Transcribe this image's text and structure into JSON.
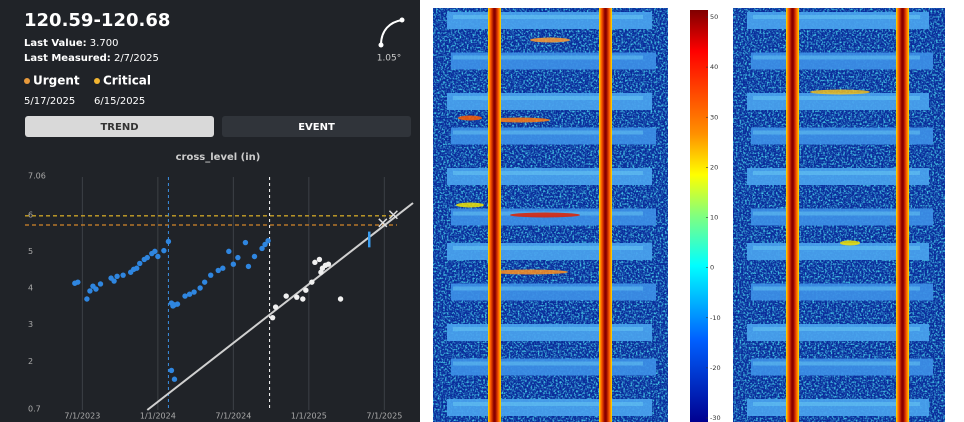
{
  "header": {
    "title": "120.59-120.68",
    "last_value_label": "Last Value:",
    "last_value": "3.700",
    "last_measured_label": "Last Measured:",
    "last_measured": "2/7/2025",
    "angle": "1.05°"
  },
  "alerts": [
    {
      "label": "Urgent",
      "date": "5/17/2025",
      "color": "#e89a3c"
    },
    {
      "label": "Critical",
      "date": "6/15/2025",
      "color": "#f2b531"
    }
  ],
  "tabs": [
    {
      "label": "TREND",
      "active": true
    },
    {
      "label": "EVENT",
      "active": false
    }
  ],
  "chart_data": {
    "type": "scatter",
    "title": "cross_level (in)",
    "xlim": [
      2023.12,
      2025.67
    ],
    "xticks": [
      {
        "value": 2023.5,
        "label": "7/1/2023"
      },
      {
        "value": 2024.0,
        "label": "1/1/2024"
      },
      {
        "value": 2024.5,
        "label": "7/1/2024"
      },
      {
        "value": 2025.0,
        "label": "1/1/2025"
      },
      {
        "value": 2025.5,
        "label": "7/1/2025"
      }
    ],
    "ylim": [
      0.7,
      7.06
    ],
    "yticks": [
      0.7,
      2,
      3,
      4,
      5,
      6,
      7.06
    ],
    "grid": "x",
    "series": [
      {
        "color": "#2f86e0",
        "x": [
          2023.45,
          2023.47,
          2023.53,
          2023.55,
          2023.57,
          2023.59,
          2023.62,
          2023.69,
          2023.71,
          2023.73,
          2023.77,
          2023.82,
          2023.84,
          2023.86,
          2023.88,
          2023.91,
          2023.93,
          2023.96,
          2023.98,
          2024.0,
          2024.04,
          2024.07,
          2024.09,
          2024.1,
          2024.11,
          2024.13,
          2024.18,
          2024.21,
          2024.24,
          2024.28,
          2024.31,
          2024.35,
          2024.4,
          2024.43,
          2024.47,
          2024.5,
          2024.53,
          2024.58,
          2024.6,
          2024.64,
          2024.69,
          2024.71,
          2024.73,
          2024.09,
          2024.11
        ],
        "values": [
          4.16,
          4.19,
          3.73,
          3.95,
          4.08,
          4.0,
          4.14,
          4.3,
          4.22,
          4.35,
          4.38,
          4.46,
          4.54,
          4.57,
          4.7,
          4.81,
          4.86,
          4.97,
          5.03,
          4.89,
          5.05,
          5.3,
          3.62,
          3.54,
          3.57,
          3.59,
          3.81,
          3.86,
          3.92,
          4.03,
          4.19,
          4.38,
          4.51,
          4.57,
          5.03,
          4.68,
          4.86,
          5.27,
          4.62,
          4.89,
          5.11,
          5.22,
          5.32,
          1.78,
          1.54
        ]
      },
      {
        "color": "#f0f0f0",
        "x": [
          2024.76,
          2024.78,
          2024.85,
          2024.92,
          2024.96,
          2024.98,
          2025.02,
          2025.04,
          2025.07,
          2025.08,
          2025.09,
          2025.11,
          2025.13,
          2025.21
        ],
        "values": [
          3.22,
          3.51,
          3.81,
          3.78,
          3.73,
          3.97,
          4.19,
          4.73,
          4.81,
          4.46,
          4.57,
          4.65,
          4.68,
          3.73
        ]
      }
    ],
    "trend": {
      "color": "#d0d0d0",
      "x": [
        2023.93,
        2025.69
      ],
      "values": [
        0.7,
        6.35
      ]
    },
    "hlines": [
      {
        "value": 6,
        "color": "#c9a227"
      },
      {
        "value": 5.75,
        "color": "#d4862a"
      }
    ],
    "vlines": [
      {
        "value": 2024.07,
        "color": "#3b8ee0"
      },
      {
        "value": 2024.74,
        "color": "#ffffff"
      }
    ],
    "projection": {
      "color": "#e0e0e0",
      "x": [
        2025.49,
        2025.56
      ],
      "values": [
        5.81,
        6.03
      ]
    },
    "range_bar": {
      "color": "#3b9ef0",
      "x": 2025.4,
      "values": [
        5.14,
        5.57
      ]
    }
  },
  "colorbar": {
    "lim": [
      -30,
      50
    ],
    "ticks": [
      50,
      40,
      30,
      20,
      10,
      0,
      -10,
      -20,
      -30
    ]
  }
}
